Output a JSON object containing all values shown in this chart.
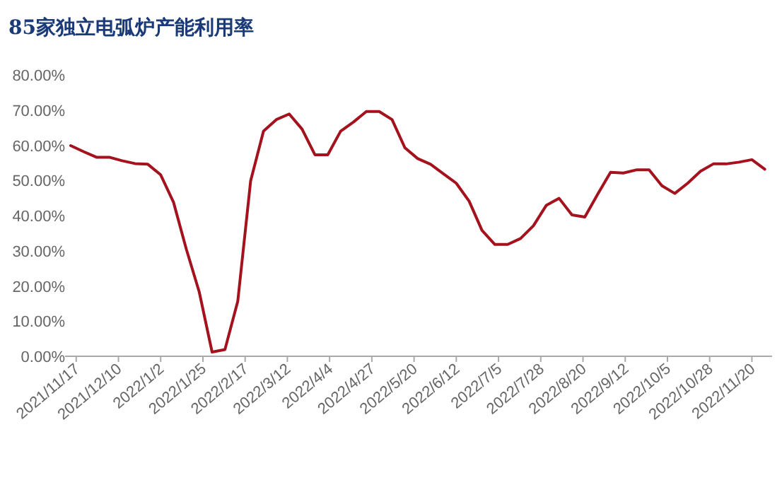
{
  "chart_data": {
    "type": "line",
    "title": "85家独立电弧炉产能利用率",
    "x": [
      "2021-11-14",
      "2021-11-21",
      "2021-11-28",
      "2021-12-05",
      "2021-12-12",
      "2021-12-19",
      "2021-12-26",
      "2022-01-02",
      "2022-01-09",
      "2022-01-16",
      "2022-01-23",
      "2022-01-30",
      "2022-02-06",
      "2022-02-13",
      "2022-02-20",
      "2022-02-27",
      "2022-03-06",
      "2022-03-13",
      "2022-03-20",
      "2022-03-27",
      "2022-04-03",
      "2022-04-10",
      "2022-04-17",
      "2022-04-24",
      "2022-05-01",
      "2022-05-08",
      "2022-05-15",
      "2022-05-22",
      "2022-05-29",
      "2022-06-05",
      "2022-06-12",
      "2022-06-19",
      "2022-06-26",
      "2022-07-03",
      "2022-07-10",
      "2022-07-17",
      "2022-07-24",
      "2022-07-31",
      "2022-08-07",
      "2022-08-14",
      "2022-08-21",
      "2022-08-28",
      "2022-09-04",
      "2022-09-11",
      "2022-09-18",
      "2022-09-25",
      "2022-10-02",
      "2022-10-09",
      "2022-10-16",
      "2022-10-23",
      "2022-10-30",
      "2022-11-06",
      "2022-11-13",
      "2022-11-20",
      "2022-11-27"
    ],
    "series": [
      {
        "color": "#a3121d",
        "values": [
          59.9,
          58.2,
          56.6,
          56.6,
          55.6,
          54.8,
          54.6,
          51.6,
          43.8,
          30.4,
          18.3,
          1.2,
          1.9,
          15.7,
          49.9,
          64.0,
          67.3,
          68.9,
          64.6,
          57.3,
          57.3,
          64.0,
          66.6,
          69.6,
          69.6,
          67.3,
          59.3,
          56.2,
          54.6,
          51.9,
          49.2,
          44.1,
          35.8,
          31.8,
          31.8,
          33.5,
          37.1,
          42.9,
          44.9,
          40.2,
          39.6,
          46.1,
          52.3,
          52.1,
          53.0,
          53.0,
          48.5,
          46.3,
          49.2,
          52.6,
          54.7,
          54.7,
          55.2,
          55.9,
          53.2
        ]
      }
    ],
    "xlim": [
      "2021-11-14",
      "2022-12-01"
    ],
    "xticks": [
      {
        "value": "2021-11-17",
        "label": "2021/11/17"
      },
      {
        "value": "2021-12-10",
        "label": "2021/12/10"
      },
      {
        "value": "2022-01-02",
        "label": "2022/1/2"
      },
      {
        "value": "2022-01-25",
        "label": "2022/1/25"
      },
      {
        "value": "2022-02-17",
        "label": "2022/2/17"
      },
      {
        "value": "2022-03-12",
        "label": "2022/3/12"
      },
      {
        "value": "2022-04-04",
        "label": "2022/4/4"
      },
      {
        "value": "2022-04-27",
        "label": "2022/4/27"
      },
      {
        "value": "2022-05-20",
        "label": "2022/5/20"
      },
      {
        "value": "2022-06-12",
        "label": "2022/6/12"
      },
      {
        "value": "2022-07-05",
        "label": "2022/7/5"
      },
      {
        "value": "2022-07-28",
        "label": "2022/7/28"
      },
      {
        "value": "2022-08-20",
        "label": "2022/8/20"
      },
      {
        "value": "2022-09-12",
        "label": "2022/9/12"
      },
      {
        "value": "2022-10-05",
        "label": "2022/10/5"
      },
      {
        "value": "2022-10-28",
        "label": "2022/10/28"
      },
      {
        "value": "2022-11-20",
        "label": "2022/11/20"
      }
    ],
    "ylim": [
      0,
      80
    ],
    "yticks": [
      {
        "value": 0,
        "label": "0.00%"
      },
      {
        "value": 10,
        "label": "10.00%"
      },
      {
        "value": 20,
        "label": "20.00%"
      },
      {
        "value": 30,
        "label": "30.00%"
      },
      {
        "value": 40,
        "label": "40.00%"
      },
      {
        "value": 50,
        "label": "50.00%"
      },
      {
        "value": 60,
        "label": "60.00%"
      },
      {
        "value": 70,
        "label": "70.00%"
      },
      {
        "value": 80,
        "label": "80.00%"
      }
    ]
  }
}
